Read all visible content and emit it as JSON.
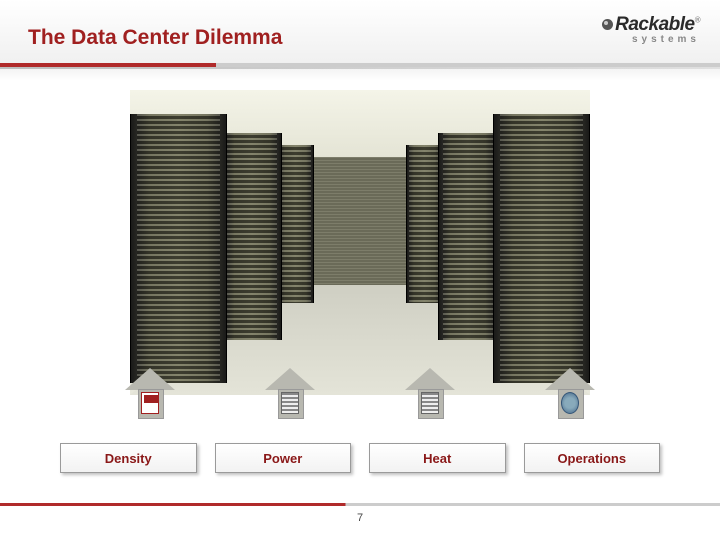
{
  "title": "The Data Center Dilemma",
  "logo": {
    "main": "Rackable",
    "sub": "systems"
  },
  "labels": {
    "l1": "Density",
    "l2": "Power",
    "l3": "Heat",
    "l4": "Operations"
  },
  "pageNumber": "7",
  "colors": {
    "accent": "#a02020",
    "label_text": "#8a1818",
    "arrow_fill": "#b8b8b0"
  }
}
